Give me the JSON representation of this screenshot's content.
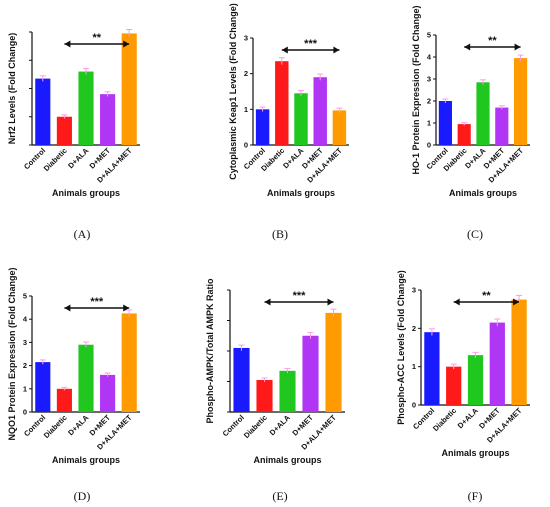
{
  "figure": {
    "colors": [
      "#1a1aff",
      "#ff1a1a",
      "#1fc71f",
      "#b035f5",
      "#ff9a00"
    ],
    "errorbar_color": "#ff9ae6",
    "error_fraction": 0.025
  },
  "chart_data": [
    {
      "type": "bar",
      "panel": "(A)",
      "title": "",
      "ylabel": "Nrf2 Levels (Fold Change)",
      "xlabel": "Animals groups",
      "categories": [
        "Control",
        "Diabetic",
        "D+ALA",
        "D+MET",
        "D+ALA+MET"
      ],
      "values": [
        2.35,
        1.0,
        2.6,
        1.8,
        3.95
      ],
      "ylim": [
        0,
        4
      ],
      "yticks": [
        "0",
        "1",
        "2",
        "3",
        "4"
      ],
      "show_ytick_labels": false,
      "significance": "**"
    },
    {
      "type": "bar",
      "panel": "(B)",
      "title": "",
      "ylabel": "Cytoplasmic Keap1 Levels (Fold Change)",
      "xlabel": "Animals groups",
      "categories": [
        "Control",
        "Diabetic",
        "D+ALA",
        "D+MET",
        "D+ALA+MET"
      ],
      "values": [
        1.0,
        2.35,
        1.45,
        1.9,
        0.97
      ],
      "ylim": [
        0,
        3
      ],
      "yticks": [
        "0",
        "1",
        "2",
        "3"
      ],
      "show_ytick_labels": true,
      "significance": "***"
    },
    {
      "type": "bar",
      "panel": "(C)",
      "title": "",
      "ylabel": "HO-1 Protein Expression (Fold Change)",
      "xlabel": "Animals groups",
      "categories": [
        "Control",
        "Diabetic",
        "D+ALA",
        "D+MET",
        "D+ALA+MET"
      ],
      "values": [
        2.0,
        0.95,
        2.85,
        1.7,
        3.95
      ],
      "ylim": [
        0,
        5
      ],
      "yticks": [
        "0",
        "1",
        "2",
        "3",
        "4",
        "5"
      ],
      "show_ytick_labels": true,
      "significance": "**"
    },
    {
      "type": "bar",
      "panel": "(D)",
      "title": "",
      "ylabel": "NQO1 Protein Expression (Fold Change)",
      "xlabel": "Animals groups",
      "categories": [
        "Control",
        "Diabetic",
        "D+ALA",
        "D+MET",
        "D+ALA+MET"
      ],
      "values": [
        2.15,
        1.0,
        2.9,
        1.6,
        4.25
      ],
      "ylim": [
        0,
        5
      ],
      "yticks": [
        "0",
        "1",
        "2",
        "3",
        "4",
        "5"
      ],
      "show_ytick_labels": true,
      "significance": "***"
    },
    {
      "type": "bar",
      "panel": "(E)",
      "title": "",
      "ylabel": "Phospho-AMPK/Total AMPK Ratio",
      "xlabel": "Animals groups",
      "categories": [
        "Control",
        "Diabetic",
        "D+ALA",
        "D+MET",
        "D+ALA+MET"
      ],
      "values": [
        2.1,
        1.05,
        1.35,
        2.5,
        3.25
      ],
      "ylim": [
        0,
        4
      ],
      "yticks": [
        "0",
        "1",
        "2",
        "3",
        "4"
      ],
      "show_ytick_labels": false,
      "significance": "***"
    },
    {
      "type": "bar",
      "panel": "(F)",
      "title": "",
      "ylabel": "Phospho-ACC Levels (Fold Change)",
      "xlabel": "Animals groups",
      "categories": [
        "Control",
        "Diabetic",
        "D+ALA",
        "D+MET",
        "D+ALA+MET"
      ],
      "values": [
        1.9,
        1.0,
        1.3,
        2.15,
        2.75
      ],
      "ylim": [
        0,
        3
      ],
      "yticks": [
        "0",
        "1",
        "2",
        "3"
      ],
      "show_ytick_labels": true,
      "significance": "**"
    }
  ]
}
